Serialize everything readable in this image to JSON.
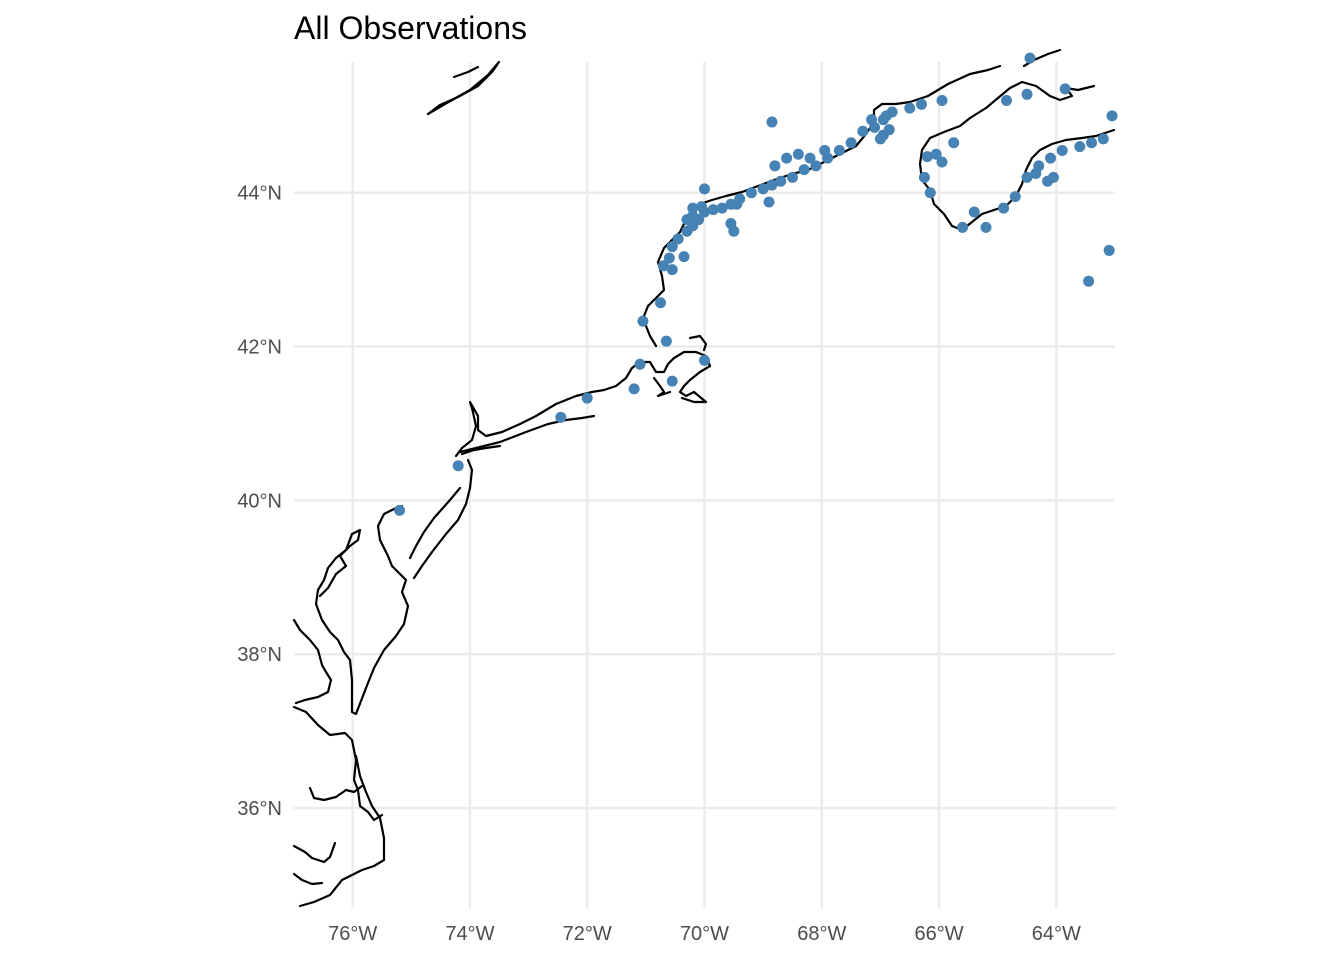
{
  "title": "All Observations",
  "colors": {
    "points": "#4682b4",
    "coastline": "#000000",
    "grid": "#ebebeb",
    "background": "#ffffff"
  },
  "chart_data": {
    "type": "scatter",
    "title": "All Observations",
    "xlabel": "",
    "ylabel": "",
    "grid": true,
    "legend": "none",
    "xlim": [
      -77.0,
      -63.0
    ],
    "ylim": [
      34.7,
      45.7
    ],
    "x_ticks": [
      -76,
      -74,
      -72,
      -70,
      -68,
      -66,
      -64
    ],
    "y_ticks": [
      36,
      38,
      40,
      42,
      44
    ],
    "x_tick_labels": [
      "76°W",
      "74°W",
      "72°W",
      "70°W",
      "68°W",
      "66°W",
      "64°W"
    ],
    "y_tick_labels": [
      "36°N",
      "38°N",
      "40°N",
      "42°N",
      "44°N"
    ],
    "series": [
      {
        "points": [
          [
            -75.2,
            39.87
          ],
          [
            -74.2,
            40.45
          ],
          [
            -72.45,
            41.08
          ],
          [
            -72.0,
            41.33
          ],
          [
            -71.2,
            41.45
          ],
          [
            -71.1,
            41.77
          ],
          [
            -70.55,
            41.55
          ],
          [
            -70.0,
            41.82
          ],
          [
            -70.65,
            42.07
          ],
          [
            -71.05,
            42.33
          ],
          [
            -70.75,
            42.57
          ],
          [
            -70.7,
            43.05
          ],
          [
            -70.6,
            43.15
          ],
          [
            -70.55,
            43.0
          ],
          [
            -70.35,
            43.17
          ],
          [
            -70.55,
            43.3
          ],
          [
            -70.45,
            43.4
          ],
          [
            -70.3,
            43.5
          ],
          [
            -70.2,
            43.57
          ],
          [
            -70.1,
            43.65
          ],
          [
            -70.0,
            43.75
          ],
          [
            -70.2,
            43.7
          ],
          [
            -70.3,
            43.65
          ],
          [
            -70.2,
            43.8
          ],
          [
            -70.05,
            43.82
          ],
          [
            -69.85,
            43.78
          ],
          [
            -69.7,
            43.8
          ],
          [
            -69.55,
            43.85
          ],
          [
            -69.4,
            43.92
          ],
          [
            -69.2,
            44.0
          ],
          [
            -69.0,
            44.05
          ],
          [
            -68.85,
            44.1
          ],
          [
            -68.7,
            44.15
          ],
          [
            -68.5,
            44.2
          ],
          [
            -68.3,
            44.3
          ],
          [
            -68.1,
            44.35
          ],
          [
            -67.9,
            44.45
          ],
          [
            -67.7,
            44.55
          ],
          [
            -67.5,
            44.65
          ],
          [
            -67.3,
            44.8
          ],
          [
            -67.1,
            44.85
          ],
          [
            -66.95,
            44.95
          ],
          [
            -66.8,
            45.05
          ],
          [
            -66.5,
            45.1
          ],
          [
            -66.3,
            45.15
          ],
          [
            -65.95,
            45.2
          ],
          [
            -65.75,
            44.65
          ],
          [
            -66.05,
            44.5
          ],
          [
            -66.2,
            44.47
          ],
          [
            -66.25,
            44.2
          ],
          [
            -66.15,
            44.0
          ],
          [
            -65.6,
            43.55
          ],
          [
            -65.4,
            43.75
          ],
          [
            -65.2,
            43.55
          ],
          [
            -64.9,
            43.8
          ],
          [
            -64.7,
            43.95
          ],
          [
            -64.5,
            44.2
          ],
          [
            -64.3,
            44.35
          ],
          [
            -64.1,
            44.45
          ],
          [
            -63.9,
            44.55
          ],
          [
            -63.6,
            44.6
          ],
          [
            -63.4,
            44.65
          ],
          [
            -63.2,
            44.7
          ],
          [
            -63.05,
            45.0
          ],
          [
            -63.85,
            45.35
          ],
          [
            -64.5,
            45.28
          ],
          [
            -64.85,
            45.2
          ],
          [
            -64.45,
            45.75
          ],
          [
            -63.45,
            42.85
          ],
          [
            -63.1,
            43.25
          ],
          [
            -70.0,
            44.05
          ],
          [
            -69.45,
            43.85
          ],
          [
            -69.55,
            43.6
          ],
          [
            -69.5,
            43.5
          ],
          [
            -68.9,
            43.88
          ],
          [
            -68.85,
            44.92
          ],
          [
            -68.8,
            44.35
          ],
          [
            -68.6,
            44.45
          ],
          [
            -68.4,
            44.5
          ],
          [
            -68.2,
            44.45
          ],
          [
            -67.95,
            44.55
          ],
          [
            -67.15,
            44.95
          ],
          [
            -66.95,
            44.75
          ],
          [
            -66.9,
            45.0
          ],
          [
            -66.85,
            44.82
          ],
          [
            -67.0,
            44.7
          ],
          [
            -65.95,
            44.4
          ],
          [
            -64.35,
            44.25
          ],
          [
            -64.15,
            44.15
          ],
          [
            -64.05,
            44.2
          ]
        ]
      }
    ]
  }
}
